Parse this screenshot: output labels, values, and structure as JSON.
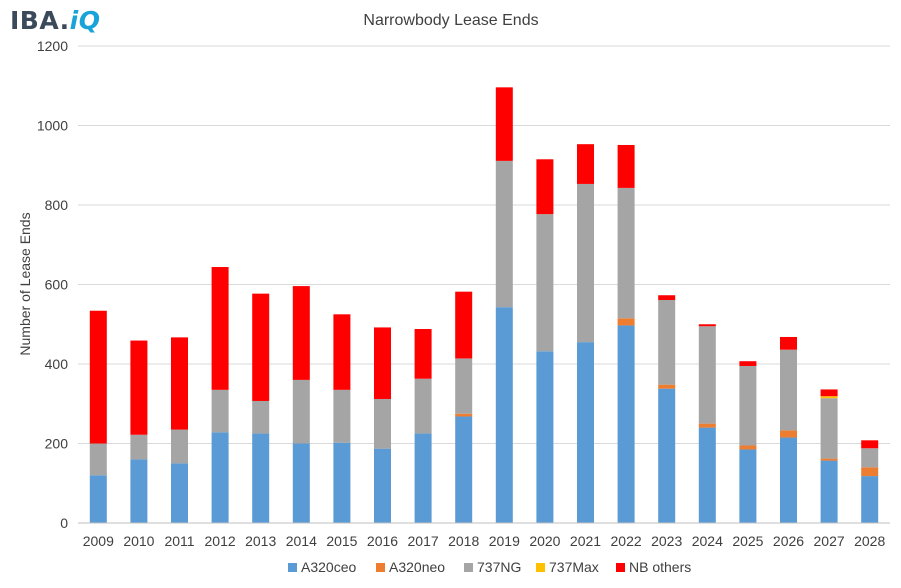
{
  "logo": {
    "main": "IBA.",
    "accent": "iQ"
  },
  "chart_data": {
    "type": "bar",
    "stacked": true,
    "title": "Narrowbody Lease Ends",
    "xlabel": "",
    "ylabel": "Number of Lease Ends",
    "ylim": [
      0,
      1200
    ],
    "yticks": [
      0,
      200,
      400,
      600,
      800,
      1000,
      1200
    ],
    "grid": true,
    "legend_position": "bottom",
    "categories": [
      "2009",
      "2010",
      "2011",
      "2012",
      "2013",
      "2014",
      "2015",
      "2016",
      "2017",
      "2018",
      "2019",
      "2020",
      "2021",
      "2022",
      "2023",
      "2024",
      "2025",
      "2026",
      "2027",
      "2028"
    ],
    "series": [
      {
        "name": "A320ceo",
        "color": "#5b9bd5",
        "values": [
          120,
          160,
          150,
          228,
          225,
          200,
          202,
          187,
          225,
          268,
          543,
          432,
          455,
          497,
          338,
          240,
          185,
          215,
          157,
          118
        ]
      },
      {
        "name": "A320neo",
        "color": "#ed7d31",
        "values": [
          0,
          0,
          0,
          0,
          0,
          0,
          0,
          0,
          0,
          7,
          0,
          0,
          0,
          18,
          10,
          10,
          10,
          18,
          5,
          22
        ]
      },
      {
        "name": "737NG",
        "color": "#a5a5a5",
        "values": [
          80,
          62,
          85,
          107,
          82,
          160,
          133,
          125,
          138,
          139,
          368,
          345,
          398,
          328,
          213,
          245,
          200,
          203,
          152,
          48
        ]
      },
      {
        "name": "737Max",
        "color": "#ffc000",
        "values": [
          0,
          0,
          0,
          0,
          0,
          0,
          0,
          0,
          0,
          0,
          0,
          0,
          0,
          0,
          0,
          0,
          0,
          0,
          5,
          0
        ]
      },
      {
        "name": "NB others",
        "color": "#ff0000",
        "values": [
          334,
          237,
          232,
          309,
          270,
          236,
          190,
          180,
          125,
          168,
          185,
          138,
          100,
          108,
          12,
          5,
          12,
          32,
          17,
          20
        ]
      }
    ]
  }
}
